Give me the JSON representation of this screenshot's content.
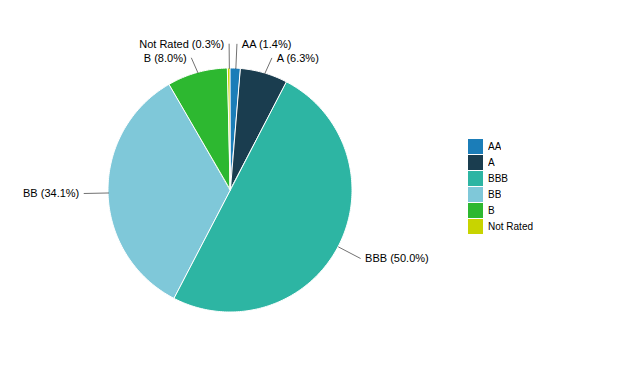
{
  "chart_data": {
    "type": "pie",
    "categories": [
      "AA",
      "A",
      "BBB",
      "BB",
      "B",
      "Not Rated"
    ],
    "values": [
      1.4,
      6.3,
      50.0,
      34.1,
      8.0,
      0.3
    ],
    "colors": [
      "#1b7db8",
      "#1a3d4f",
      "#2db5a3",
      "#7fc8d9",
      "#2db830",
      "#c8d400"
    ],
    "value_labels": [
      "AA (1.4%)",
      "A (6.3%)",
      "BBB (50.0%)",
      "BB (34.1%)",
      "B (8.0%)",
      "Not Rated (0.3%)"
    ],
    "data_labels": true,
    "legend": "right"
  }
}
